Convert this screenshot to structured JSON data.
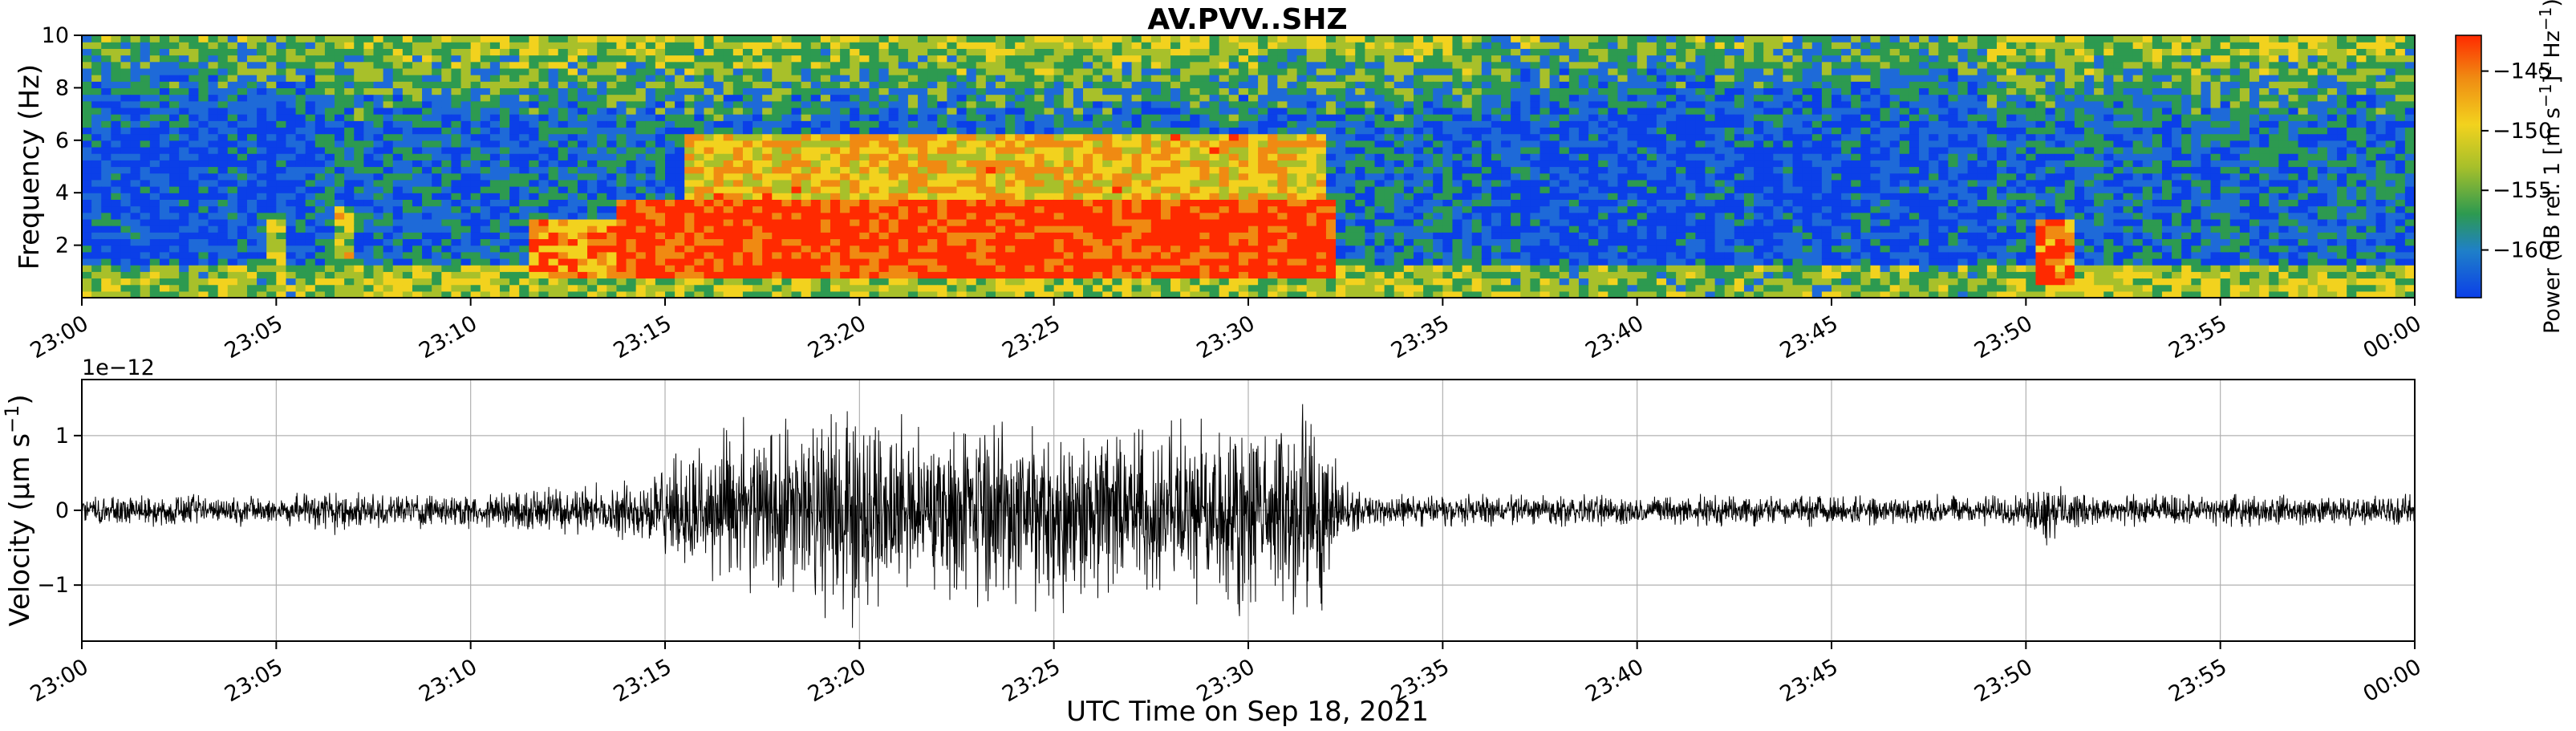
{
  "chart_data": [
    {
      "type": "heatmap",
      "title": "AV.PVV..SHZ",
      "xlabel": "",
      "ylabel": "Frequency (Hz)",
      "x_ticks": [
        "23:00",
        "23:05",
        "23:10",
        "23:15",
        "23:20",
        "23:25",
        "23:30",
        "23:35",
        "23:40",
        "23:45",
        "23:50",
        "23:55",
        "00:00"
      ],
      "x_range_minutes": [
        0,
        60
      ],
      "ylim": [
        0,
        10
      ],
      "y_ticks": [
        "2",
        "4",
        "6",
        "8",
        "10"
      ],
      "colorbar": {
        "label_prefix": "Power (dB rel. 1 [m s",
        "label_sup1": "−1",
        "label_mid": "]",
        "label_sup2": "2",
        "label_mid2": " Hz",
        "label_sup3": "−1",
        "label_suffix": ")",
        "ticks": [
          "−145",
          "−150",
          "−155",
          "−160"
        ],
        "tick_values": [
          -145,
          -150,
          -155,
          -160
        ],
        "range": [
          -164,
          -142
        ],
        "colors": [
          "#0b3fe8",
          "#1f80c8",
          "#2d9a50",
          "#a8c02a",
          "#f2d21e",
          "#f08a12",
          "#ff2a00"
        ]
      },
      "energy_events": [
        {
          "start_min": 11.5,
          "end_min": 13.8,
          "fmin": 0.8,
          "fmax": 3.0,
          "level": 0.85
        },
        {
          "start_min": 13.8,
          "end_min": 32.2,
          "fmin": 0.8,
          "fmax": 3.8,
          "level": 1.0
        },
        {
          "start_min": 15.5,
          "end_min": 32.0,
          "fmin": 3.6,
          "fmax": 6.2,
          "level": 0.7
        },
        {
          "start_min": 50.2,
          "end_min": 51.2,
          "fmin": 0.6,
          "fmax": 3.0,
          "level": 0.9
        },
        {
          "start_min": 6.5,
          "end_min": 7.0,
          "fmin": 1.5,
          "fmax": 3.5,
          "level": 0.6
        },
        {
          "start_min": 4.8,
          "end_min": 5.3,
          "fmin": 1.0,
          "fmax": 3.0,
          "level": 0.5
        }
      ]
    },
    {
      "type": "line",
      "title": "",
      "xlabel": "UTC Time on Sep 18, 2021",
      "ylabel_prefix": "Velocity (µm s",
      "ylabel_sup": "−1",
      "ylabel_suffix": ")",
      "offset_label": "1e−12",
      "x_ticks": [
        "23:00",
        "23:05",
        "23:10",
        "23:15",
        "23:20",
        "23:25",
        "23:30",
        "23:35",
        "23:40",
        "23:45",
        "23:50",
        "23:55",
        "00:00"
      ],
      "x_range_minutes": [
        0,
        60
      ],
      "ylim": [
        -1.75,
        1.75
      ],
      "y_ticks": [
        "−1",
        "0",
        "1"
      ],
      "y_tick_values": [
        -1,
        0,
        1
      ],
      "grid": true,
      "series_color": "#000000",
      "amplitude_envelope": {
        "minutes": [
          0,
          5,
          6.5,
          7,
          10,
          12,
          14,
          15,
          16,
          17,
          18,
          19,
          20,
          21,
          22,
          23,
          24,
          25,
          26,
          27,
          28,
          29,
          30,
          31,
          32,
          32.5,
          33,
          40,
          50,
          50.5,
          51,
          52,
          60
        ],
        "amplitude": [
          0.22,
          0.22,
          0.35,
          0.25,
          0.25,
          0.33,
          0.4,
          0.7,
          0.95,
          1.25,
          1.2,
          1.45,
          1.6,
          1.3,
          1.15,
          1.3,
          1.25,
          1.45,
          1.3,
          1.1,
          1.2,
          1.3,
          1.45,
          1.5,
          1.35,
          0.4,
          0.22,
          0.22,
          0.22,
          0.48,
          0.3,
          0.22,
          0.22
        ]
      }
    }
  ]
}
